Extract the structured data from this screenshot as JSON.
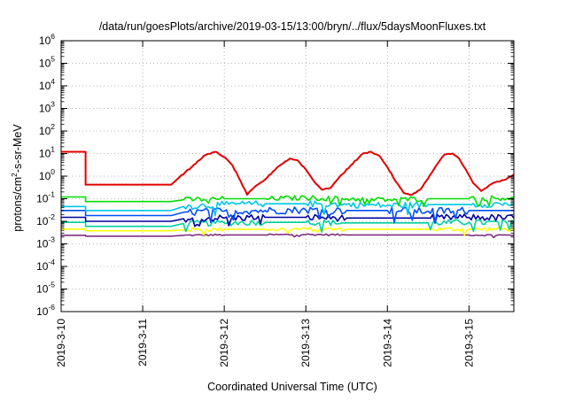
{
  "chart_data": {
    "type": "line",
    "title": "/data/run/goesPlots/archive/2019-03-15/13:00/bryn/../flux/5daysMoonFluxes.txt",
    "xlabel": "Coordinated Universal Time (UTC)",
    "ylabel": {
      "pre": "protons/cm",
      "sup": "2",
      "post": "-s-sr-MeV"
    },
    "x_unit": "days",
    "x_ticks": [
      {
        "v": 0,
        "label": "2019-3-10"
      },
      {
        "v": 1,
        "label": "2019-3-11"
      },
      {
        "v": 2,
        "label": "2019-3-12"
      },
      {
        "v": 3,
        "label": "2019-3-13"
      },
      {
        "v": 4,
        "label": "2019-3-14"
      },
      {
        "v": 5,
        "label": "2019-3-15"
      }
    ],
    "xlim": [
      0,
      5.55
    ],
    "y_scale": "log",
    "ylim_exp": [
      -6,
      6
    ],
    "y_ticks": [
      {
        "exp": 6,
        "base": "10",
        "sup": "6"
      },
      {
        "exp": 5,
        "base": "10",
        "sup": "5"
      },
      {
        "exp": 4,
        "base": "10",
        "sup": "4"
      },
      {
        "exp": 3,
        "base": "10",
        "sup": "3"
      },
      {
        "exp": 2,
        "base": "10",
        "sup": "2"
      },
      {
        "exp": 1,
        "base": "10",
        "sup": "1"
      },
      {
        "exp": 0,
        "base": "10",
        "sup": "0"
      },
      {
        "exp": -1,
        "base": "10",
        "sup": "-1"
      },
      {
        "exp": -2,
        "base": "10",
        "sup": "-2"
      },
      {
        "exp": -3,
        "base": "10",
        "sup": "-3"
      },
      {
        "exp": -4,
        "base": "10",
        "sup": "-4"
      },
      {
        "exp": -5,
        "base": "10",
        "sup": "-5"
      },
      {
        "exp": -6,
        "base": "10",
        "sup": "-6"
      }
    ],
    "grid": true,
    "series": [
      {
        "color": "#e00000",
        "x": [
          0,
          0.3,
          0.3,
          1.35,
          1.45,
          1.6,
          1.75,
          1.9,
          2.0,
          2.1,
          2.2,
          2.28,
          2.36,
          2.5,
          2.65,
          2.8,
          2.9,
          3.0,
          3.1,
          3.2,
          3.3,
          3.4,
          3.55,
          3.7,
          3.8,
          3.9,
          4.0,
          4.1,
          4.2,
          4.3,
          4.4,
          4.5,
          4.6,
          4.7,
          4.8,
          4.88,
          4.96,
          5.05,
          5.15,
          5.3,
          5.45,
          5.55
        ],
        "y": [
          12,
          12,
          0.42,
          0.42,
          0.9,
          2.5,
          8,
          12,
          7,
          3,
          0.6,
          0.15,
          0.3,
          0.7,
          2.5,
          6,
          5,
          2,
          0.6,
          0.25,
          0.3,
          0.8,
          3,
          10,
          12,
          8,
          2.5,
          0.6,
          0.18,
          0.15,
          0.25,
          0.8,
          3,
          9,
          10,
          6,
          2,
          0.5,
          0.22,
          0.5,
          0.7,
          1.2
        ]
      },
      {
        "color": "#00e000",
        "x": [
          0,
          0.3,
          0.3,
          1.35,
          1.5,
          2.0,
          2.5,
          3.0,
          3.5,
          4.0,
          4.5,
          5.0,
          5.55
        ],
        "y": [
          0.12,
          0.12,
          0.075,
          0.075,
          0.09,
          0.1,
          0.1,
          0.11,
          0.1,
          0.09,
          0.1,
          0.1,
          0.11
        ]
      },
      {
        "color": "#00c8e8",
        "x": [
          0,
          0.3,
          0.3,
          1.35,
          1.5,
          2.0,
          2.5,
          3.0,
          3.5,
          4.0,
          4.5,
          5.0,
          5.55
        ],
        "y": [
          0.045,
          0.045,
          0.03,
          0.03,
          0.045,
          0.055,
          0.06,
          0.06,
          0.055,
          0.05,
          0.055,
          0.055,
          0.06
        ]
      },
      {
        "color": "#0050ff",
        "x": [
          0,
          0.3,
          0.3,
          1.35,
          1.5,
          2.0,
          2.5,
          3.0,
          3.5,
          4.0,
          4.5,
          5.0,
          5.55
        ],
        "y": [
          0.03,
          0.03,
          0.018,
          0.018,
          0.025,
          0.028,
          0.03,
          0.032,
          0.03,
          0.03,
          0.028,
          0.03,
          0.03
        ]
      },
      {
        "color": "#0000a0",
        "x": [
          0,
          0.3,
          0.3,
          1.35,
          1.5,
          2.0,
          2.5,
          3.0,
          3.5,
          4.0,
          4.5,
          5.0,
          5.55
        ],
        "y": [
          0.015,
          0.015,
          0.01,
          0.01,
          0.013,
          0.014,
          0.015,
          0.015,
          0.014,
          0.014,
          0.014,
          0.015,
          0.014
        ]
      },
      {
        "color": "#00d0a0",
        "x": [
          0,
          0.3,
          0.3,
          1.35,
          1.5,
          2.0,
          2.5,
          3.0,
          3.5,
          4.0,
          4.5,
          5.0,
          5.55
        ],
        "y": [
          0.009,
          0.009,
          0.006,
          0.006,
          0.008,
          0.0085,
          0.009,
          0.009,
          0.0085,
          0.0085,
          0.0085,
          0.009,
          0.0085
        ]
      },
      {
        "color": "#ffff00",
        "x": [
          0,
          0.3,
          0.3,
          1.35,
          1.5,
          2.0,
          2.5,
          3.0,
          3.5,
          4.0,
          4.5,
          5.0,
          5.55
        ],
        "y": [
          0.0045,
          0.0045,
          0.0038,
          0.0038,
          0.0042,
          0.0044,
          0.0044,
          0.0045,
          0.0044,
          0.0044,
          0.0044,
          0.0045,
          0.0044
        ]
      },
      {
        "color": "#803080",
        "x": [
          0,
          0.3,
          0.3,
          1.35,
          1.5,
          2.0,
          2.5,
          3.0,
          3.5,
          4.0,
          4.5,
          5.0,
          5.55
        ],
        "y": [
          0.0024,
          0.0024,
          0.0022,
          0.0022,
          0.0024,
          0.0025,
          0.0025,
          0.0026,
          0.0025,
          0.0025,
          0.0025,
          0.0025,
          0.0024
        ]
      }
    ]
  }
}
